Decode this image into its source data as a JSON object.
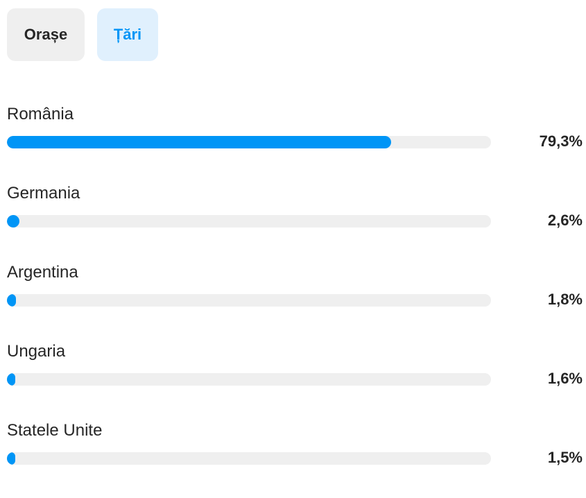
{
  "tabs": {
    "cities_label": "Orașe",
    "countries_label": "Țări",
    "active": "countries"
  },
  "countries": [
    {
      "name": "România",
      "percent_label": "79,3%",
      "percent": 79.3
    },
    {
      "name": "Germania",
      "percent_label": "2,6%",
      "percent": 2.6
    },
    {
      "name": "Argentina",
      "percent_label": "1,8%",
      "percent": 1.8
    },
    {
      "name": "Ungaria",
      "percent_label": "1,6%",
      "percent": 1.6
    },
    {
      "name": "Statele Unite",
      "percent_label": "1,5%",
      "percent": 1.5
    }
  ],
  "colors": {
    "accent": "#0095f6",
    "track": "#efefef",
    "active_tab_bg": "#e0f0fd",
    "inactive_tab_bg": "#efefef"
  }
}
